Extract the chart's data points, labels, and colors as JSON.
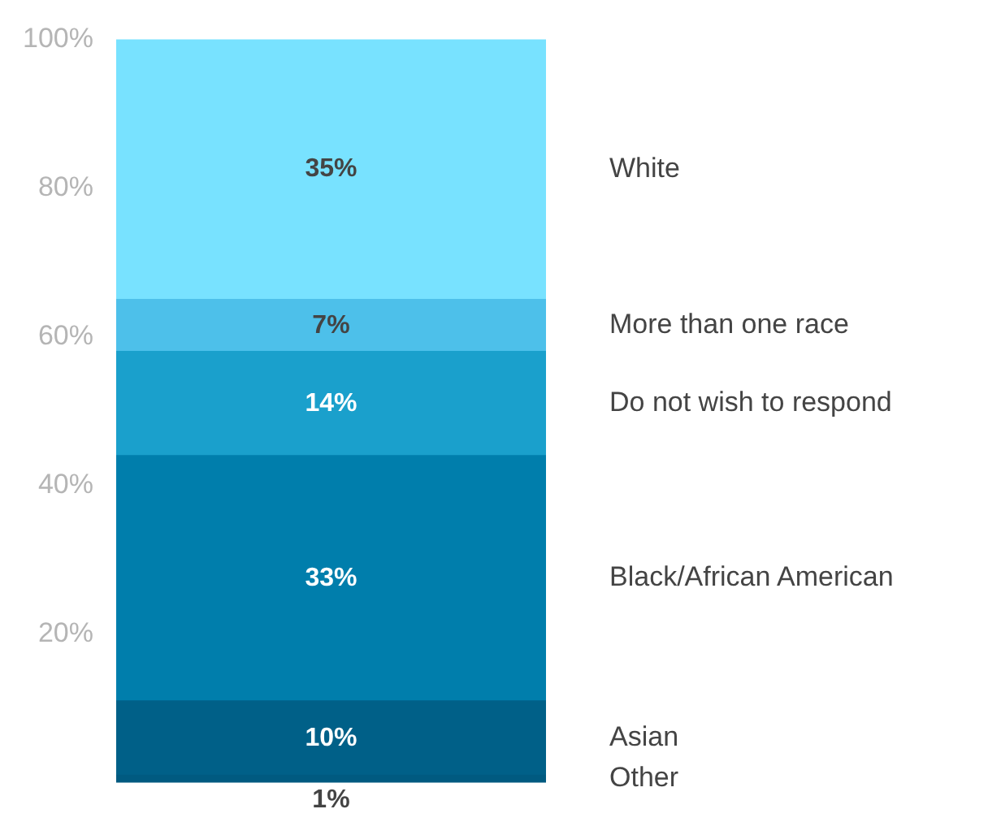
{
  "chart_data": {
    "type": "bar",
    "stacked": true,
    "categories": [
      null
    ],
    "ylim": [
      0,
      100
    ],
    "yticks": [
      {
        "value": 20,
        "label": "20%"
      },
      {
        "value": 40,
        "label": "40%"
      },
      {
        "value": 60,
        "label": "60%"
      },
      {
        "value": 80,
        "label": "80%"
      },
      {
        "value": 100,
        "label": "100%"
      }
    ],
    "grid": false,
    "legend": false,
    "series": [
      {
        "name": "Other",
        "color": "#005a80",
        "values": [
          1
        ],
        "value_labels": [
          "1%"
        ]
      },
      {
        "name": "Asian",
        "color": "#006088",
        "values": [
          10
        ],
        "value_labels": [
          "10%"
        ]
      },
      {
        "name": "Black/African American",
        "color": "#007eac",
        "values": [
          33
        ],
        "value_labels": [
          "33%"
        ]
      },
      {
        "name": "Do not wish to respond",
        "color": "#1aa0cc",
        "values": [
          14
        ],
        "value_labels": [
          "14%"
        ]
      },
      {
        "name": "More than one race",
        "color": "#4dc0ea",
        "values": [
          7
        ],
        "value_labels": [
          "7%"
        ]
      },
      {
        "name": "White",
        "color": "#78e2ff",
        "values": [
          35
        ],
        "value_labels": [
          "35%"
        ]
      }
    ]
  }
}
